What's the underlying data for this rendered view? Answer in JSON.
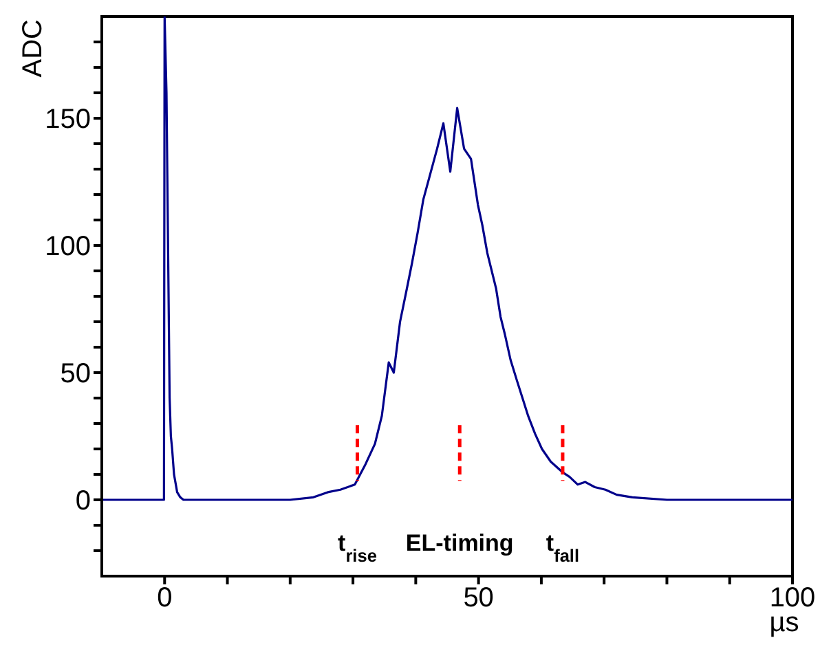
{
  "chart_data": {
    "type": "line",
    "xlabel": "µs",
    "ylabel": "ADC",
    "x": [
      -10,
      -5,
      -0.1,
      0,
      0.3,
      0.8,
      1,
      1.2,
      1.5,
      2,
      2.5,
      3,
      5,
      10,
      15,
      20,
      23.7,
      26,
      28,
      30.3,
      32,
      33.5,
      34.6,
      35.7,
      36.5,
      37.5,
      38.5,
      39.4,
      40.3,
      41.2,
      42.3,
      43.4,
      44.4,
      45.5,
      46.6,
      47.7,
      48.8,
      49.9,
      50.6,
      51.4,
      52.1,
      52.8,
      53.5,
      54.2,
      55.1,
      56.1,
      57,
      57.9,
      59,
      60.1,
      61.5,
      63.3,
      64.5,
      65.8,
      67,
      68.5,
      70.2,
      72,
      74.5,
      80,
      85,
      90,
      95,
      100
    ],
    "series": [
      {
        "color": "#00008b",
        "values": [
          0,
          0,
          0,
          190,
          160,
          40,
          25,
          20,
          10,
          3,
          1,
          0,
          0,
          0,
          0,
          0,
          1,
          3,
          4,
          6,
          14,
          22,
          33,
          54,
          50,
          70,
          82,
          93,
          105,
          118,
          128,
          138,
          148,
          129,
          154,
          138,
          134,
          116,
          108,
          97,
          90,
          83,
          72,
          65,
          55,
          47,
          40,
          33,
          26,
          20,
          15,
          11,
          9,
          6,
          7,
          5,
          4,
          2,
          1,
          0,
          0,
          0,
          0,
          0
        ]
      }
    ],
    "xlim": [
      -10,
      100
    ],
    "xticks": [
      0,
      50,
      100,
      {
        "value": 10,
        "label": null
      },
      {
        "value": 20,
        "label": null
      },
      {
        "value": 30,
        "label": null
      },
      {
        "value": 40,
        "label": null
      },
      {
        "value": 60,
        "label": null
      },
      {
        "value": 70,
        "label": null
      },
      {
        "value": 80,
        "label": null
      },
      {
        "value": 90,
        "label": null
      }
    ],
    "ylim": [
      -30,
      190
    ],
    "yticks": [
      0,
      50,
      100,
      150,
      {
        "value": -20,
        "label": null
      },
      {
        "value": -10,
        "label": null
      },
      {
        "value": 10,
        "label": null
      },
      {
        "value": 20,
        "label": null
      },
      {
        "value": 30,
        "label": null
      },
      {
        "value": 40,
        "label": null
      },
      {
        "value": 60,
        "label": null
      },
      {
        "value": 70,
        "label": null
      },
      {
        "value": 80,
        "label": null
      },
      {
        "value": 90,
        "label": null
      },
      {
        "value": 110,
        "label": null
      },
      {
        "value": 120,
        "label": null
      },
      {
        "value": 130,
        "label": null
      },
      {
        "value": 140,
        "label": null
      },
      {
        "value": 160,
        "label": null
      },
      {
        "value": 170,
        "label": null
      },
      {
        "value": 180,
        "label": null
      }
    ],
    "grid": false,
    "legend": false,
    "marker": "none",
    "line_style": "solid",
    "ref_lines": [
      {
        "axis": "x",
        "value": 30.7,
        "label": "t$_{rise}$",
        "color": "#ff0000",
        "line_style": "dashed"
      },
      {
        "axis": "x",
        "value": 47,
        "label": "EL-timing",
        "color": "#ff0000",
        "line_style": "dashed"
      },
      {
        "axis": "x",
        "value": 63.4,
        "label": "t$_{fall}$",
        "color": "#ff0000",
        "line_style": "dashed"
      }
    ]
  }
}
